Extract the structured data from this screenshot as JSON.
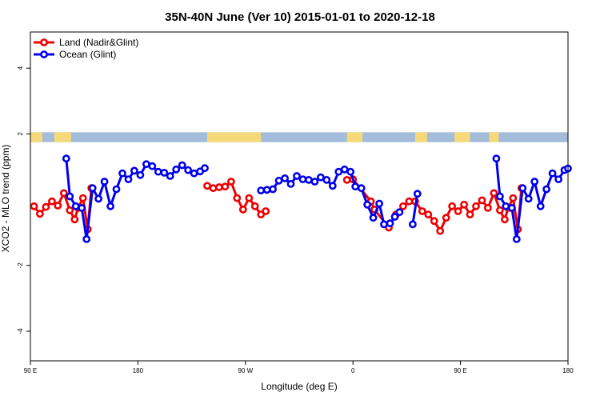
{
  "chart_data": {
    "type": "line",
    "title": "35N-40N June (Ver 10)   2015-01-01 to 2020-12-18",
    "xlabel": "Longitude (deg E)",
    "ylabel": "XCO2 - MLO trend (ppm)",
    "x_ticks": [
      {
        "value": 90,
        "label": "90 E"
      },
      {
        "value": 180,
        "label": "180"
      },
      {
        "value": 270,
        "label": "90 W"
      },
      {
        "value": 360,
        "label": "0"
      },
      {
        "value": 450,
        "label": "90 E"
      },
      {
        "value": 540,
        "label": "180"
      }
    ],
    "y_ticks": [
      {
        "value": -4,
        "label": "-4"
      },
      {
        "value": -2,
        "label": "-2"
      },
      {
        "value": 2,
        "label": "2"
      },
      {
        "value": 4,
        "label": "4"
      }
    ],
    "xlim": [
      90,
      540
    ],
    "ylim": [
      -4.9,
      5.1
    ],
    "land_band": {
      "y_range": [
        1.75,
        2.05
      ],
      "ocean_color": "#a3bcd9",
      "land_color": "#f7d97a",
      "land_spans": [
        [
          90,
          100
        ],
        [
          110,
          124
        ],
        [
          238,
          283
        ],
        [
          355,
          368
        ],
        [
          412,
          422
        ],
        [
          445,
          458
        ],
        [
          474,
          482
        ]
      ]
    },
    "legend": {
      "position": "top-left"
    },
    "series": [
      {
        "name": "Land (Nadir&Glint)",
        "color": "#ee0000",
        "segments": [
          [
            [
              93,
              -0.2
            ],
            [
              98,
              -0.43
            ],
            [
              103,
              -0.22
            ],
            [
              108,
              -0.05
            ],
            [
              113,
              -0.18
            ],
            [
              118,
              0.2
            ],
            [
              123,
              -0.32
            ],
            [
              127,
              -0.6
            ],
            [
              130,
              -0.25
            ],
            [
              134,
              0.05
            ],
            [
              138,
              -0.9
            ],
            [
              141,
              0.35
            ]
          ],
          [
            [
              238,
              0.42
            ],
            [
              243,
              0.35
            ],
            [
              248,
              0.38
            ],
            [
              253,
              0.4
            ],
            [
              258,
              0.55
            ],
            [
              263,
              0.05
            ],
            [
              268,
              -0.3
            ],
            [
              273,
              0.05
            ],
            [
              278,
              -0.2
            ],
            [
              283,
              -0.45
            ],
            [
              287,
              -0.35
            ]
          ],
          [
            [
              355,
              0.6
            ],
            [
              360,
              0.62
            ],
            [
              375,
              -0.05
            ],
            [
              378,
              -0.3
            ],
            [
              390,
              -0.85
            ],
            [
              396,
              -0.45
            ],
            [
              402,
              -0.2
            ],
            [
              407,
              -0.05
            ],
            [
              412,
              -0.05
            ],
            [
              418,
              -0.35
            ],
            [
              423,
              -0.45
            ],
            [
              428,
              -0.65
            ],
            [
              433,
              -0.95
            ],
            [
              438,
              -0.55
            ],
            [
              443,
              -0.2
            ],
            [
              448,
              -0.35
            ],
            [
              453,
              -0.15
            ],
            [
              458,
              -0.45
            ],
            [
              463,
              -0.2
            ],
            [
              468,
              -0.02
            ],
            [
              473,
              -0.25
            ],
            [
              478,
              0.2
            ],
            [
              483,
              -0.32
            ],
            [
              487,
              -0.6
            ],
            [
              490,
              -0.25
            ],
            [
              494,
              0.05
            ],
            [
              498,
              -0.9
            ],
            [
              501,
              0.35
            ]
          ]
        ]
      },
      {
        "name": "Ocean (Glint)",
        "color": "#0000ee",
        "segments": [
          [
            [
              120,
              1.25
            ],
            [
              123,
              0.1
            ],
            [
              128,
              -0.2
            ],
            [
              133,
              -0.25
            ],
            [
              137,
              -1.2
            ],
            [
              142,
              0.35
            ],
            [
              147,
              0.03
            ],
            [
              152,
              0.55
            ],
            [
              157,
              -0.2
            ],
            [
              162,
              0.32
            ],
            [
              167,
              0.8
            ],
            [
              172,
              0.62
            ],
            [
              177,
              0.88
            ],
            [
              182,
              0.75
            ],
            [
              187,
              1.08
            ],
            [
              192,
              1.02
            ],
            [
              197,
              0.85
            ],
            [
              202,
              0.82
            ],
            [
              207,
              0.72
            ],
            [
              212,
              0.92
            ],
            [
              217,
              1.05
            ],
            [
              222,
              0.9
            ],
            [
              227,
              0.8
            ],
            [
              232,
              0.86
            ],
            [
              236,
              0.96
            ]
          ],
          [
            [
              283,
              0.28
            ],
            [
              288,
              0.3
            ],
            [
              293,
              0.32
            ],
            [
              298,
              0.58
            ],
            [
              303,
              0.65
            ],
            [
              308,
              0.48
            ],
            [
              313,
              0.72
            ],
            [
              318,
              0.62
            ],
            [
              323,
              0.6
            ],
            [
              328,
              0.55
            ],
            [
              333,
              0.68
            ],
            [
              338,
              0.6
            ],
            [
              343,
              0.42
            ],
            [
              348,
              0.85
            ],
            [
              353,
              0.92
            ],
            [
              358,
              0.85
            ],
            [
              362,
              0.4
            ],
            [
              367,
              0.35
            ],
            [
              372,
              -0.15
            ],
            [
              377,
              -0.55
            ],
            [
              382,
              -0.12
            ],
            [
              386,
              -0.75
            ],
            [
              391,
              -0.72
            ],
            [
              395,
              -0.52
            ],
            [
              399,
              -0.38
            ]
          ],
          [
            [
              410,
              -0.75
            ],
            [
              414,
              0.18
            ]
          ],
          [
            [
              480,
              1.25
            ],
            [
              483,
              0.1
            ],
            [
              488,
              -0.2
            ],
            [
              493,
              -0.25
            ],
            [
              497,
              -1.2
            ],
            [
              502,
              0.35
            ],
            [
              507,
              0.03
            ],
            [
              512,
              0.55
            ],
            [
              517,
              -0.2
            ],
            [
              522,
              0.32
            ],
            [
              527,
              0.8
            ],
            [
              532,
              0.62
            ],
            [
              537,
              0.9
            ],
            [
              540,
              0.95
            ]
          ]
        ]
      }
    ]
  }
}
